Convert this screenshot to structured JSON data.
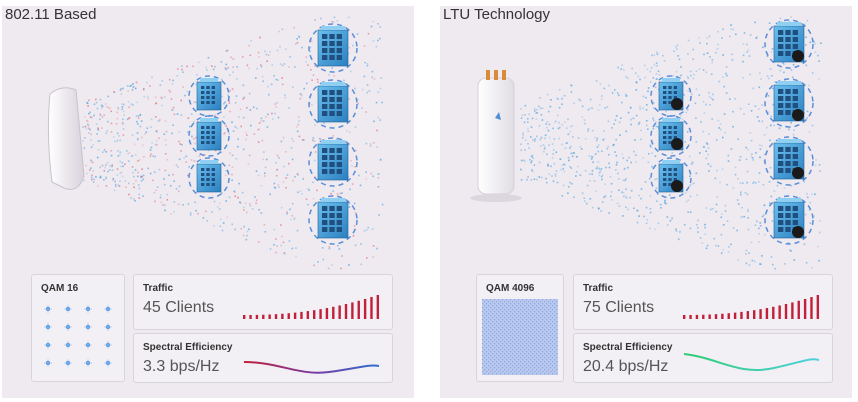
{
  "left": {
    "title": "802.11 Based",
    "qam_label": "QAM 16",
    "traffic_label": "Traffic",
    "traffic_value": "45 Clients",
    "spectral_label": "Spectral Efficiency",
    "spectral_value": "3.3 bps/Hz"
  },
  "right": {
    "title": "LTU Technology",
    "qam_label": "QAM 4096",
    "traffic_label": "Traffic",
    "traffic_value": "75 Clients",
    "spectral_label": "Spectral Efficiency",
    "spectral_value": "20.4 bps/Hz"
  },
  "colors": {
    "panel_bg": "#efe9f0",
    "traffic_bar": "#c0203a",
    "building_blue": "#3b9ad6",
    "dash_ring": "#5b8fd8",
    "signal_blue": "#4aa3df",
    "signal_red": "#e06a7a",
    "curve_left_start": "#c0203a",
    "curve_left_end": "#2e6fd0",
    "curve_right_start": "#2ecc71",
    "curve_right_end": "#4fd1e0"
  },
  "icons": [
    "building-icon",
    "access-point-icon",
    "ltu-radio-icon",
    "constellation-dot-icon",
    "traffic-bars",
    "efficiency-curve"
  ]
}
